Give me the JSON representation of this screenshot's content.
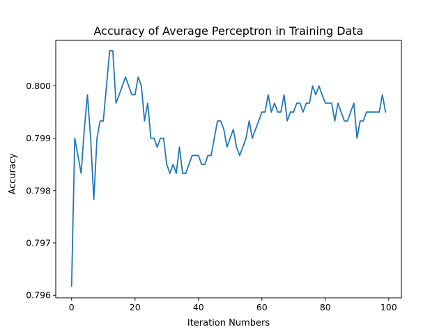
{
  "chart_data": {
    "type": "line",
    "title": "Accuracy of Average Perceptron in Training Data",
    "xlabel": "Iteration Numbers",
    "ylabel": "Accuracy",
    "xlim": [
      -5,
      104
    ],
    "ylim": [
      0.79595,
      0.80087
    ],
    "xticks": [
      0,
      20,
      40,
      60,
      80,
      100
    ],
    "xtick_labels": [
      "0",
      "20",
      "40",
      "60",
      "80",
      "100"
    ],
    "yticks": [
      0.796,
      0.797,
      0.798,
      0.799,
      0.8
    ],
    "ytick_labels": [
      "0.796",
      "0.797",
      "0.798",
      "0.799",
      "0.800"
    ],
    "grid": false,
    "colors": {
      "series": "#1f77b4"
    },
    "series": [
      {
        "x": [
          0,
          1,
          2,
          3,
          4,
          5,
          6,
          7,
          8,
          9,
          10,
          11,
          12,
          13,
          14,
          15,
          16,
          17,
          18,
          19,
          20,
          21,
          22,
          23,
          24,
          25,
          26,
          27,
          28,
          29,
          30,
          31,
          32,
          33,
          34,
          35,
          36,
          37,
          38,
          39,
          40,
          41,
          42,
          43,
          44,
          45,
          46,
          47,
          48,
          49,
          50,
          51,
          52,
          53,
          54,
          55,
          56,
          57,
          58,
          59,
          60,
          61,
          62,
          63,
          64,
          65,
          66,
          67,
          68,
          69,
          70,
          71,
          72,
          73,
          74,
          75,
          76,
          77,
          78,
          79,
          80,
          81,
          82,
          83,
          84,
          85,
          86,
          87,
          88,
          89,
          90,
          91,
          92,
          93,
          94,
          95,
          96,
          97,
          98,
          99
        ],
        "y": [
          0.79617,
          0.799,
          0.79867,
          0.79833,
          0.79917,
          0.79983,
          0.799,
          0.79783,
          0.799,
          0.79933,
          0.79933,
          0.8,
          0.80067,
          0.80067,
          0.79967,
          0.79983,
          0.8,
          0.80017,
          0.8,
          0.79983,
          0.79983,
          0.80017,
          0.8,
          0.79933,
          0.79967,
          0.799,
          0.799,
          0.79883,
          0.799,
          0.799,
          0.7985,
          0.79833,
          0.7985,
          0.79833,
          0.79883,
          0.79833,
          0.79833,
          0.7985,
          0.79867,
          0.79867,
          0.79867,
          0.7985,
          0.7985,
          0.79867,
          0.79867,
          0.799,
          0.79933,
          0.79933,
          0.79917,
          0.79883,
          0.799,
          0.79917,
          0.79883,
          0.79867,
          0.79883,
          0.799,
          0.79933,
          0.799,
          0.79917,
          0.79933,
          0.7995,
          0.7995,
          0.79983,
          0.7995,
          0.79967,
          0.7995,
          0.7995,
          0.79983,
          0.79933,
          0.7995,
          0.7995,
          0.79967,
          0.79967,
          0.7995,
          0.79967,
          0.79967,
          0.8,
          0.79983,
          0.8,
          0.79983,
          0.79967,
          0.79967,
          0.79967,
          0.79933,
          0.79967,
          0.7995,
          0.79933,
          0.79933,
          0.7995,
          0.79967,
          0.799,
          0.79933,
          0.79933,
          0.7995,
          0.7995,
          0.7995,
          0.7995,
          0.7995,
          0.79983,
          0.7995
        ]
      }
    ]
  }
}
